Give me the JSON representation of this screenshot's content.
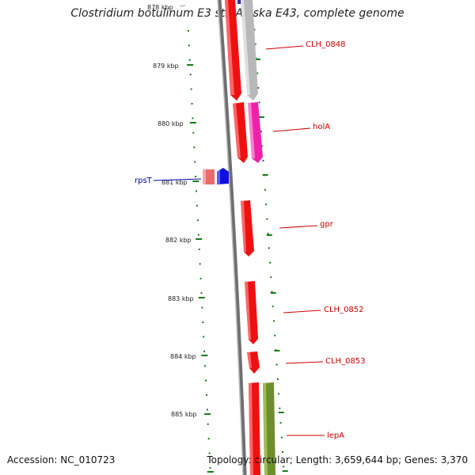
{
  "title": "Clostridium botulinum E3 str. Alaska E43, complete genome",
  "footer": {
    "accession": "Accession: NC_010723",
    "summary": "Topology: circular; Length: 3,659,644 bp; Genes: 3,370"
  },
  "colors": {
    "backbone": "#808080",
    "tick": "#1a7a1a",
    "gene_red": "#ee1111",
    "gene_grey": "#b8b8b8",
    "gene_magenta": "#ee22aa",
    "gene_pink": "#e86a6a",
    "gene_blue": "#1111dd",
    "gene_olive": "#6e8e2e",
    "label_red": "#cc0000",
    "label_blue": "#0000aa"
  },
  "scale_labels": [
    "878 kbp",
    "879 kbp",
    "880 kbp",
    "881 kbp",
    "882 kbp",
    "883 kbp",
    "884 kbp",
    "885 kbp"
  ],
  "gene_labels": [
    {
      "text": "CLH_0848",
      "color": "label_red"
    },
    {
      "text": "holA",
      "color": "label_red"
    },
    {
      "text": "rpsT",
      "color": "label_blue"
    },
    {
      "text": "gpr",
      "color": "label_red"
    },
    {
      "text": "CLH_0852",
      "color": "label_red"
    },
    {
      "text": "CLH_0853",
      "color": "label_red"
    },
    {
      "text": "lepA",
      "color": "label_red"
    }
  ]
}
